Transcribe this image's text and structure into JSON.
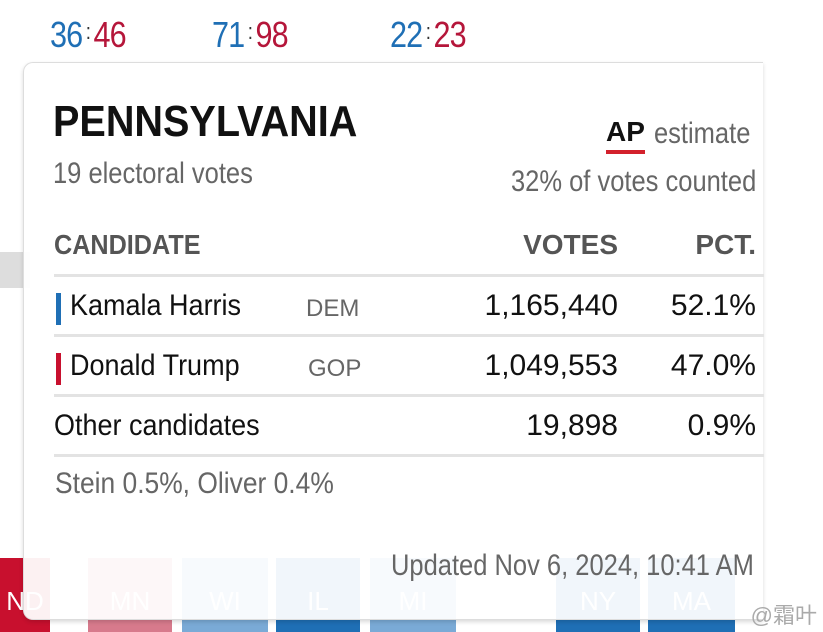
{
  "scores": [
    {
      "dem": "36",
      "gop": "46"
    },
    {
      "dem": "71",
      "gop": "98"
    },
    {
      "dem": "22",
      "gop": "23"
    }
  ],
  "map_tiles": [
    {
      "label": "ND",
      "color": "#c8102e"
    },
    {
      "label": "MN",
      "color": "#d77a8c"
    },
    {
      "label": "WI",
      "color": "#7aaad6"
    },
    {
      "label": "IL",
      "color": "#1f6fb5"
    },
    {
      "label": "MI",
      "color": "#7aaad6"
    },
    {
      "label": "NY",
      "color": "#1f6fb5"
    },
    {
      "label": "MA",
      "color": "#1f6fb5"
    }
  ],
  "popup": {
    "state": "PENNSYLVANIA",
    "electoral": "19 electoral votes",
    "ap_logo": "AP",
    "ap_label": "estimate",
    "counted": "32% of votes counted",
    "headers": {
      "candidate": "CANDIDATE",
      "votes": "VOTES",
      "pct": "PCT."
    },
    "rows": [
      {
        "name": "Kamala Harris",
        "party": "DEM",
        "votes": "1,165,440",
        "pct": "52.1%",
        "color": "#1f6fb5"
      },
      {
        "name": "Donald Trump",
        "party": "GOP",
        "votes": "1,049,553",
        "pct": "47.0%",
        "color": "#c8102e"
      },
      {
        "name": "Other candidates",
        "votes": "19,898",
        "pct": "0.9%"
      }
    ],
    "other_note": "Stein 0.5%, Oliver 0.4%",
    "updated": "Updated Nov 6, 2024, 10:41 AM"
  },
  "watermark": "@霜叶"
}
